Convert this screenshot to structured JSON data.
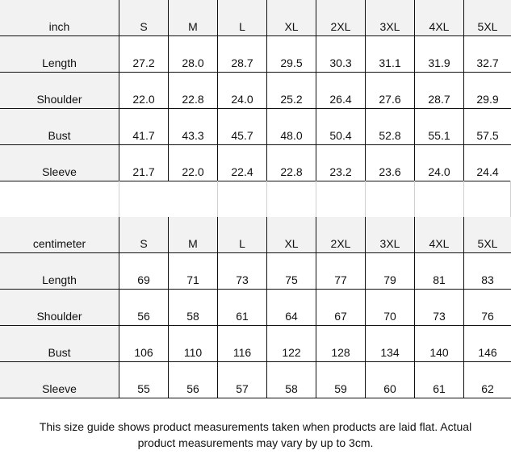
{
  "sizes": [
    "S",
    "M",
    "L",
    "XL",
    "2XL",
    "3XL",
    "4XL",
    "5XL"
  ],
  "tables": [
    {
      "unit": "inch",
      "rows": [
        {
          "label": "Length",
          "values": [
            "27.2",
            "28.0",
            "28.7",
            "29.5",
            "30.3",
            "31.1",
            "31.9",
            "32.7"
          ]
        },
        {
          "label": "Shoulder",
          "values": [
            "22.0",
            "22.8",
            "24.0",
            "25.2",
            "26.4",
            "27.6",
            "28.7",
            "29.9"
          ]
        },
        {
          "label": "Bust",
          "values": [
            "41.7",
            "43.3",
            "45.7",
            "48.0",
            "50.4",
            "52.8",
            "55.1",
            "57.5"
          ]
        },
        {
          "label": "Sleeve",
          "values": [
            "21.7",
            "22.0",
            "22.4",
            "22.8",
            "23.2",
            "23.6",
            "24.0",
            "24.4"
          ]
        }
      ]
    },
    {
      "unit": "centimeter",
      "rows": [
        {
          "label": "Length",
          "values": [
            "69",
            "71",
            "73",
            "75",
            "77",
            "79",
            "81",
            "83"
          ]
        },
        {
          "label": "Shoulder",
          "values": [
            "56",
            "58",
            "61",
            "64",
            "67",
            "70",
            "73",
            "76"
          ]
        },
        {
          "label": "Bust",
          "values": [
            "106",
            "110",
            "116",
            "122",
            "128",
            "134",
            "140",
            "146"
          ]
        },
        {
          "label": "Sleeve",
          "values": [
            "55",
            "56",
            "57",
            "58",
            "59",
            "60",
            "61",
            "62"
          ]
        }
      ]
    }
  ],
  "note": {
    "line1": "This size guide shows product measurements taken when products are laid flat. Actual",
    "line2": "product measurements may vary by up to 3cm."
  }
}
